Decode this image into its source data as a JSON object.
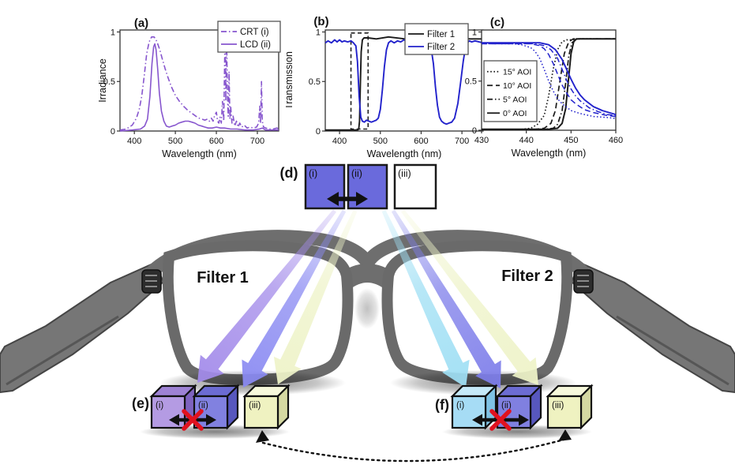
{
  "figure": {
    "panel_labels": {
      "a": "(a)",
      "b": "(b)",
      "c": "(c)",
      "d": "(d)",
      "e": "(e)",
      "f": "(f)"
    }
  },
  "chart_data": [
    {
      "type": "line",
      "panel_label": "(a)",
      "xlabel": "Wavelength (nm)",
      "ylabel": "Irradiance",
      "xlim": [
        365,
        752
      ],
      "ylim": [
        0,
        1.02
      ],
      "xticks": [
        400,
        500,
        600,
        700
      ],
      "yticks": [
        0,
        0.5,
        1
      ],
      "legend_position": "top-right",
      "grid": false,
      "series": [
        {
          "name": "CRT (i)",
          "color": "#8756CE",
          "dash": "dashdot",
          "width": 1.6,
          "x": [
            365,
            380,
            395,
            405,
            412,
            418,
            424,
            430,
            436,
            442,
            448,
            452,
            456,
            462,
            468,
            475,
            482,
            490,
            500,
            510,
            520,
            530,
            540,
            550,
            558,
            565,
            572,
            578,
            583,
            588,
            592,
            596,
            600,
            603,
            606,
            609,
            612,
            615,
            618,
            621,
            623,
            625,
            627,
            629,
            631,
            633,
            635,
            638,
            641,
            645,
            649,
            653,
            657,
            662,
            668,
            675,
            682,
            690,
            698,
            703,
            706,
            708,
            710,
            712,
            715,
            720,
            728,
            738,
            748,
            752
          ],
          "y": [
            0.01,
            0.02,
            0.06,
            0.13,
            0.22,
            0.35,
            0.55,
            0.78,
            0.9,
            0.95,
            0.95,
            0.93,
            0.89,
            0.82,
            0.73,
            0.63,
            0.54,
            0.45,
            0.36,
            0.3,
            0.25,
            0.21,
            0.18,
            0.15,
            0.13,
            0.12,
            0.11,
            0.12,
            0.1,
            0.13,
            0.1,
            0.16,
            0.19,
            0.1,
            0.08,
            0.14,
            0.08,
            0.3,
            0.1,
            0.95,
            0.3,
            0.97,
            0.35,
            0.15,
            0.6,
            0.12,
            0.25,
            0.08,
            0.15,
            0.05,
            0.1,
            0.04,
            0.08,
            0.04,
            0.06,
            0.03,
            0.04,
            0.03,
            0.04,
            0.08,
            0.25,
            0.08,
            0.5,
            0.1,
            0.04,
            0.03,
            0.02,
            0.02,
            0.03,
            0.02
          ]
        },
        {
          "name": "LCD (ii)",
          "color": "#8756CE",
          "dash": "solid",
          "width": 1.6,
          "x": [
            365,
            395,
            415,
            425,
            432,
            438,
            443,
            447,
            450,
            453,
            457,
            461,
            466,
            472,
            478,
            485,
            492,
            500,
            508,
            516,
            524,
            532,
            540,
            548,
            556,
            564,
            572,
            580,
            590,
            600,
            610,
            620,
            635,
            650,
            670,
            690,
            705,
            712,
            720,
            735,
            752
          ],
          "y": [
            0.0,
            0.01,
            0.02,
            0.05,
            0.12,
            0.35,
            0.68,
            0.85,
            0.88,
            0.82,
            0.62,
            0.38,
            0.2,
            0.1,
            0.05,
            0.04,
            0.05,
            0.06,
            0.08,
            0.09,
            0.1,
            0.1,
            0.09,
            0.08,
            0.06,
            0.05,
            0.04,
            0.03,
            0.03,
            0.04,
            0.03,
            0.03,
            0.02,
            0.02,
            0.01,
            0.01,
            0.02,
            0.03,
            0.01,
            0.01,
            0.01
          ]
        }
      ]
    },
    {
      "type": "line",
      "panel_label": "(b)",
      "xlabel": "Wavelength (nm)",
      "ylabel": "Transmission",
      "xlim": [
        365,
        752
      ],
      "ylim": [
        0,
        1.02
      ],
      "xticks": [
        400,
        500,
        600,
        700
      ],
      "yticks": [
        0,
        0.5,
        1
      ],
      "legend_position": "top-right",
      "grid": false,
      "annotations": [
        {
          "type": "dashed_rect",
          "x0": 428,
          "x1": 470,
          "y0": 0.02,
          "y1": 0.99,
          "color": "#222222"
        }
      ],
      "series": [
        {
          "name": "Filter 1",
          "color": "#1a1a1a",
          "dash": "solid",
          "width": 1.9,
          "x": [
            365,
            400,
            430,
            444,
            447,
            449,
            451,
            453,
            456,
            460,
            470,
            490,
            520,
            560,
            600,
            640,
            680,
            720,
            752
          ],
          "y": [
            0.01,
            0.01,
            0.01,
            0.01,
            0.02,
            0.1,
            0.45,
            0.8,
            0.92,
            0.94,
            0.94,
            0.93,
            0.95,
            0.93,
            0.94,
            0.93,
            0.94,
            0.93,
            0.93
          ]
        },
        {
          "name": "Filter 2",
          "color": "#2222CC",
          "dash": "solid",
          "width": 1.9,
          "x": [
            365,
            372,
            380,
            388,
            394,
            400,
            406,
            412,
            420,
            428,
            434,
            440,
            444,
            448,
            452,
            456,
            461,
            466,
            472,
            478,
            484,
            490,
            495,
            500,
            505,
            510,
            515,
            520,
            526,
            534,
            542,
            550,
            558,
            566,
            574,
            582,
            590,
            598,
            606,
            614,
            620,
            625,
            630,
            635,
            640,
            645,
            650,
            656,
            662,
            668,
            675,
            682,
            690,
            697,
            703,
            708,
            713,
            718,
            724,
            732,
            742,
            752
          ],
          "y": [
            0.89,
            0.91,
            0.89,
            0.92,
            0.9,
            0.92,
            0.9,
            0.91,
            0.9,
            0.91,
            0.89,
            0.86,
            0.7,
            0.35,
            0.14,
            0.1,
            0.09,
            0.11,
            0.1,
            0.09,
            0.1,
            0.11,
            0.13,
            0.22,
            0.42,
            0.65,
            0.82,
            0.89,
            0.91,
            0.89,
            0.91,
            0.9,
            0.92,
            0.9,
            0.91,
            0.9,
            0.92,
            0.9,
            0.91,
            0.89,
            0.87,
            0.82,
            0.68,
            0.45,
            0.26,
            0.14,
            0.1,
            0.08,
            0.07,
            0.08,
            0.09,
            0.13,
            0.28,
            0.5,
            0.7,
            0.83,
            0.89,
            0.91,
            0.9,
            0.91,
            0.9,
            0.89
          ]
        }
      ]
    },
    {
      "type": "line",
      "panel_label": "(c)",
      "xlabel": "Wavelength (nm)",
      "ylabel": "",
      "xlim": [
        430,
        460
      ],
      "ylim": [
        0,
        1.02
      ],
      "xticks": [
        430,
        440,
        450,
        460
      ],
      "yticks": [
        0,
        0.5,
        1
      ],
      "legend_position": "left-middle",
      "grid": false,
      "legend_entries": [
        {
          "label": "15° AOI",
          "dash": "dot",
          "color": "#1a1a1a"
        },
        {
          "label": "10° AOI",
          "dash": "dash",
          "color": "#1a1a1a"
        },
        {
          "label": "5° AOI",
          "dash": "dashdot",
          "color": "#1a1a1a"
        },
        {
          "label": "0° AOI",
          "dash": "solid",
          "color": "#1a1a1a"
        }
      ],
      "series": [
        {
          "name": "Filter1 15 AOI",
          "color": "#1a1a1a",
          "dash": "dot",
          "width": 1.7,
          "x": [
            430,
            439,
            441,
            442.5,
            444,
            445,
            446,
            447,
            448,
            449,
            450,
            452,
            455,
            460
          ],
          "y": [
            0.01,
            0.01,
            0.02,
            0.06,
            0.15,
            0.35,
            0.62,
            0.82,
            0.9,
            0.92,
            0.92,
            0.93,
            0.93,
            0.93
          ]
        },
        {
          "name": "Filter1 10 AOI",
          "color": "#1a1a1a",
          "dash": "dash",
          "width": 1.7,
          "x": [
            430,
            442,
            444,
            445.5,
            446.5,
            447.5,
            448.5,
            449.5,
            450.5,
            452,
            455,
            460
          ],
          "y": [
            0.01,
            0.01,
            0.02,
            0.07,
            0.2,
            0.5,
            0.78,
            0.9,
            0.93,
            0.93,
            0.93,
            0.93
          ]
        },
        {
          "name": "Filter1 5 AOI",
          "color": "#1a1a1a",
          "dash": "dashdot",
          "width": 1.7,
          "x": [
            430,
            444,
            446,
            447,
            448,
            448.8,
            449.5,
            450.2,
            451,
            452,
            455,
            460
          ],
          "y": [
            0.01,
            0.01,
            0.02,
            0.06,
            0.2,
            0.48,
            0.76,
            0.89,
            0.92,
            0.93,
            0.93,
            0.93
          ]
        },
        {
          "name": "Filter1 0 AOI",
          "color": "#1a1a1a",
          "dash": "solid",
          "width": 2.0,
          "x": [
            430,
            445,
            447,
            448,
            448.8,
            449.4,
            450,
            450.6,
            451.2,
            452,
            455,
            460
          ],
          "y": [
            0.01,
            0.01,
            0.02,
            0.07,
            0.22,
            0.5,
            0.78,
            0.9,
            0.93,
            0.93,
            0.93,
            0.93
          ]
        },
        {
          "name": "Filter2 15 AOI",
          "color": "#2222CC",
          "dash": "dot",
          "width": 1.5,
          "x": [
            430,
            437,
            439,
            441,
            442,
            443,
            444,
            445,
            446,
            447,
            448,
            450,
            452,
            455,
            458,
            460
          ],
          "y": [
            0.88,
            0.88,
            0.87,
            0.84,
            0.8,
            0.73,
            0.62,
            0.5,
            0.4,
            0.32,
            0.27,
            0.2,
            0.17,
            0.14,
            0.13,
            0.12
          ]
        },
        {
          "name": "Filter2 10 AOI",
          "color": "#2222CC",
          "dash": "dash",
          "width": 1.5,
          "x": [
            430,
            441,
            443,
            444,
            445,
            446,
            447,
            448,
            449,
            450,
            451,
            453,
            455,
            458,
            460
          ],
          "y": [
            0.88,
            0.88,
            0.86,
            0.83,
            0.77,
            0.68,
            0.57,
            0.46,
            0.38,
            0.31,
            0.27,
            0.21,
            0.18,
            0.15,
            0.14
          ]
        },
        {
          "name": "Filter2 5 AOI",
          "color": "#2222CC",
          "dash": "dashdot",
          "width": 1.5,
          "x": [
            430,
            442,
            444,
            445.5,
            447,
            448,
            449,
            450,
            451,
            452,
            454,
            456,
            458,
            460
          ],
          "y": [
            0.88,
            0.88,
            0.86,
            0.82,
            0.73,
            0.62,
            0.51,
            0.42,
            0.35,
            0.3,
            0.23,
            0.19,
            0.16,
            0.15
          ]
        },
        {
          "name": "Filter2 0 AOI",
          "color": "#2222CC",
          "dash": "solid",
          "width": 1.9,
          "x": [
            430,
            443,
            445,
            446.5,
            448,
            449,
            450,
            451,
            452,
            453,
            455,
            457,
            460
          ],
          "y": [
            0.89,
            0.89,
            0.87,
            0.82,
            0.72,
            0.62,
            0.52,
            0.43,
            0.36,
            0.31,
            0.24,
            0.2,
            0.16
          ]
        }
      ]
    }
  ],
  "diagram": {
    "filter1_label": "Filter 1",
    "filter2_label": "Filter 2",
    "d_label": "(d)",
    "e_label": "(e)",
    "f_label": "(f)",
    "squares": [
      {
        "label": "(i)",
        "fill": "#6A6ADC",
        "label_color": "#16164a"
      },
      {
        "label": "(ii)",
        "fill": "#6A6ADC",
        "label_color": "#16164a"
      },
      {
        "label": "(iii)",
        "fill": "#ffffff",
        "label_color": "#222222"
      }
    ],
    "cubes": [
      {
        "group": "e",
        "label": "(i)",
        "front": "#B49BE3",
        "top": "#9E82D5",
        "side": "#7E63BF",
        "label_color": "#1b1b4d"
      },
      {
        "group": "e",
        "label": "(ii)",
        "front": "#8181E0",
        "top": "#6C6CD3",
        "side": "#5757BE",
        "label_color": "#10103d"
      },
      {
        "group": "e",
        "label": "(iii)",
        "front": "#EFF2C1",
        "top": "#F7F9DC",
        "side": "#D5D9A2",
        "label_color": "#222222"
      },
      {
        "group": "f",
        "label": "(i)",
        "front": "#A6DCF5",
        "top": "#C6EAF9",
        "side": "#7FC3E5",
        "label_color": "#0f2f4a"
      },
      {
        "group": "f",
        "label": "(ii)",
        "front": "#8080E0",
        "top": "#6C6CD3",
        "side": "#5757BE",
        "label_color": "#10103d"
      },
      {
        "group": "f",
        "label": "(iii)",
        "front": "#EFF2C1",
        "top": "#F7F9DC",
        "side": "#D5D9A2",
        "label_color": "#222222"
      }
    ],
    "beam_colors": {
      "beam_purple": "#A38BEA",
      "beam_blue_left": "#8A8AF2",
      "beam_yellow": "#EEF3C8",
      "beam_cyan": "#9FDFF4",
      "beam_blue_right": "#7E7EEA"
    },
    "frame_color": "#6e6e6e",
    "cross_color": "#E0121F",
    "arrow_color": "#111111"
  }
}
